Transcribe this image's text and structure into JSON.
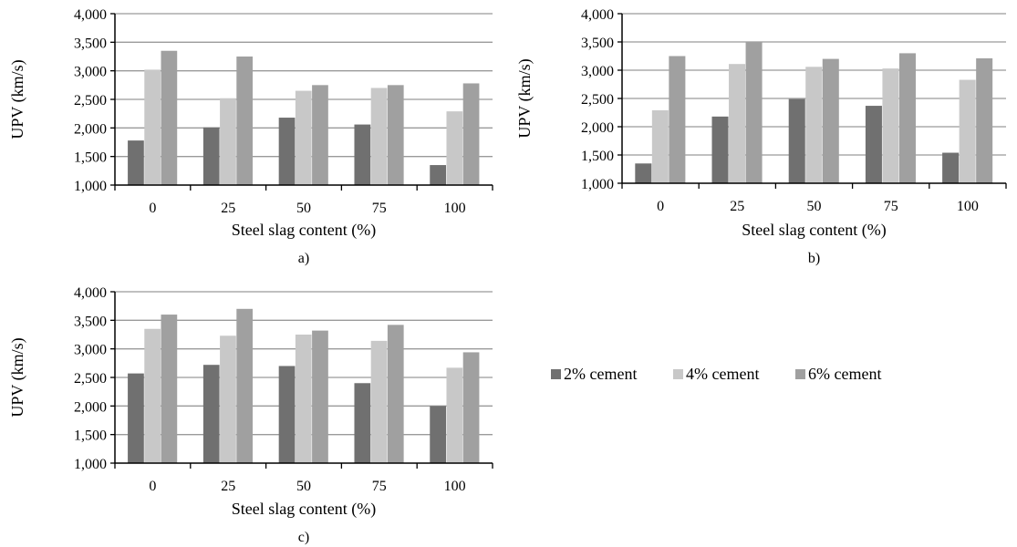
{
  "colors": {
    "2% cement": "#707070",
    "4% cement": "#c8c8c8",
    "6% cement": "#a0a0a0"
  },
  "legend": {
    "items": [
      {
        "name": "2% cement",
        "color": "#707070"
      },
      {
        "name": "4% cement",
        "color": "#c8c8c8"
      },
      {
        "name": "6% cement",
        "color": "#a0a0a0"
      }
    ]
  },
  "chart_data": [
    {
      "type": "bar",
      "label": "a)",
      "categories": [
        "0",
        "25",
        "50",
        "75",
        "100"
      ],
      "xlabel": "Steel slag content (%)",
      "ylabel": "UPV (km/s)",
      "ylim": [
        1000,
        4000
      ],
      "yticks": [
        1000,
        1500,
        2000,
        2500,
        3000,
        3500,
        4000
      ],
      "ytick_labels": [
        "1,000",
        "1,500",
        "2,000",
        "2,500",
        "3,000",
        "3,500",
        "4,000"
      ],
      "grid": true,
      "series": [
        {
          "name": "2% cement",
          "values": [
            1780,
            2010,
            2180,
            2060,
            1350
          ]
        },
        {
          "name": "4% cement",
          "values": [
            3020,
            2520,
            2650,
            2700,
            2290
          ]
        },
        {
          "name": "6% cement",
          "values": [
            3350,
            3250,
            2750,
            2750,
            2780
          ]
        }
      ]
    },
    {
      "type": "bar",
      "label": "b)",
      "categories": [
        "0",
        "25",
        "50",
        "75",
        "100"
      ],
      "xlabel": "Steel slag content (%)",
      "ylabel": "UPV (km/s)",
      "ylim": [
        1000,
        4000
      ],
      "yticks": [
        1000,
        1500,
        2000,
        2500,
        3000,
        3500,
        4000
      ],
      "ytick_labels": [
        "1,000",
        "1,500",
        "2,000",
        "2,500",
        "3,000",
        "3,500",
        "4,000"
      ],
      "grid": true,
      "series": [
        {
          "name": "2% cement",
          "values": [
            1350,
            2180,
            2490,
            2370,
            1540
          ]
        },
        {
          "name": "4% cement",
          "values": [
            2290,
            3110,
            3060,
            3030,
            2830
          ]
        },
        {
          "name": "6% cement",
          "values": [
            3250,
            3500,
            3200,
            3300,
            3210
          ]
        }
      ]
    },
    {
      "type": "bar",
      "label": "c)",
      "categories": [
        "0",
        "25",
        "50",
        "75",
        "100"
      ],
      "xlabel": "Steel slag content (%)",
      "ylabel": "UPV (km/s)",
      "ylim": [
        1000,
        4000
      ],
      "yticks": [
        1000,
        1500,
        2000,
        2500,
        3000,
        3500,
        4000
      ],
      "ytick_labels": [
        "1,000",
        "1,500",
        "2,000",
        "2,500",
        "3,000",
        "3,500",
        "4,000"
      ],
      "grid": true,
      "series": [
        {
          "name": "2% cement",
          "values": [
            2570,
            2720,
            2700,
            2400,
            2000
          ]
        },
        {
          "name": "4% cement",
          "values": [
            3350,
            3230,
            3250,
            3140,
            2670
          ]
        },
        {
          "name": "6% cement",
          "values": [
            3600,
            3700,
            3320,
            3420,
            2940
          ]
        }
      ]
    }
  ]
}
